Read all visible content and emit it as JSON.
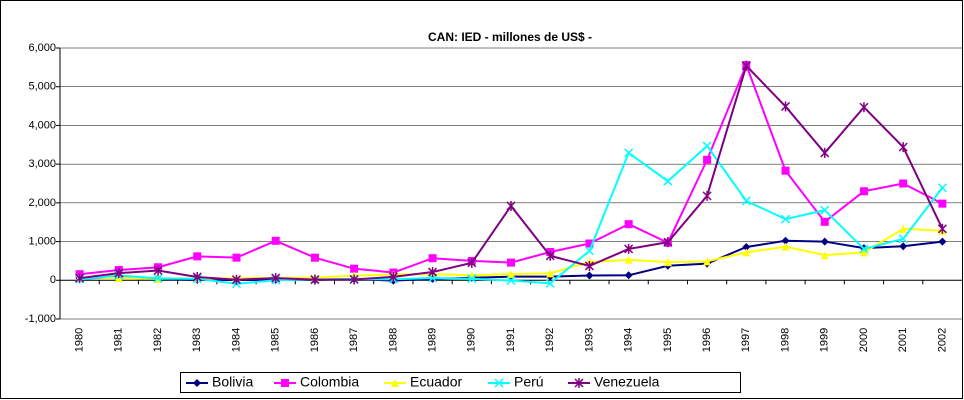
{
  "chart_data": {
    "type": "line",
    "title": "CAN: IED - millones de US$ -",
    "categories": [
      "1980",
      "1981",
      "1982",
      "1983",
      "1984",
      "1985",
      "1986",
      "1987",
      "1988",
      "1989",
      "1990",
      "1991",
      "1992",
      "1993",
      "1994",
      "1995",
      "1996",
      "1997",
      "1998",
      "1999",
      "2000",
      "2001",
      "2002"
    ],
    "series": [
      {
        "name": "Bolivia",
        "color": "#000080",
        "marker": "diamond",
        "values": [
          47,
          76,
          37,
          7,
          7,
          10,
          10,
          38,
          -10,
          37,
          66,
          93,
          94,
          125,
          130,
          375,
          430,
          860,
          1020,
          1000,
          830,
          880,
          1000
        ]
      },
      {
        "name": "Colombia",
        "color": "#FF00FF",
        "marker": "square",
        "values": [
          157,
          265,
          337,
          618,
          584,
          1020,
          584,
          300,
          200,
          570,
          500,
          457,
          730,
          950,
          1450,
          970,
          3110,
          5560,
          2830,
          1510,
          2300,
          2500,
          1980
        ]
      },
      {
        "name": "Ecuador",
        "color": "#FFFF00",
        "marker": "triangle",
        "values": [
          70,
          60,
          40,
          50,
          50,
          62,
          70,
          120,
          150,
          160,
          126,
          160,
          178,
          470,
          530,
          470,
          490,
          720,
          870,
          650,
          720,
          1330,
          1280
        ]
      },
      {
        "name": "Perú",
        "color": "#00FFFF",
        "marker": "x",
        "values": [
          27,
          125,
          48,
          38,
          -89,
          1,
          22,
          32,
          26,
          59,
          41,
          -7,
          -79,
          760,
          3290,
          2560,
          3470,
          2050,
          1580,
          1810,
          810,
          1070,
          2390
        ]
      },
      {
        "name": "Venezuela",
        "color": "#800080",
        "marker": "star",
        "values": [
          55,
          184,
          253,
          86,
          15,
          57,
          16,
          21,
          89,
          213,
          451,
          1920,
          630,
          370,
          810,
          985,
          2180,
          5540,
          4490,
          3290,
          4470,
          3440,
          1330
        ]
      }
    ],
    "ylim": [
      -1000,
      6000
    ],
    "yticks": [
      {
        "value": -1000,
        "label": "-1,000"
      },
      0,
      {
        "value": 1000,
        "label": "1,000"
      },
      {
        "value": 2000,
        "label": "2,000"
      },
      {
        "value": 3000,
        "label": "3,000"
      },
      {
        "value": 4000,
        "label": "4,000"
      },
      {
        "value": 5000,
        "label": "5,000"
      },
      {
        "value": 6000,
        "label": "6,000"
      }
    ],
    "grid": true,
    "legend": "bottom"
  }
}
